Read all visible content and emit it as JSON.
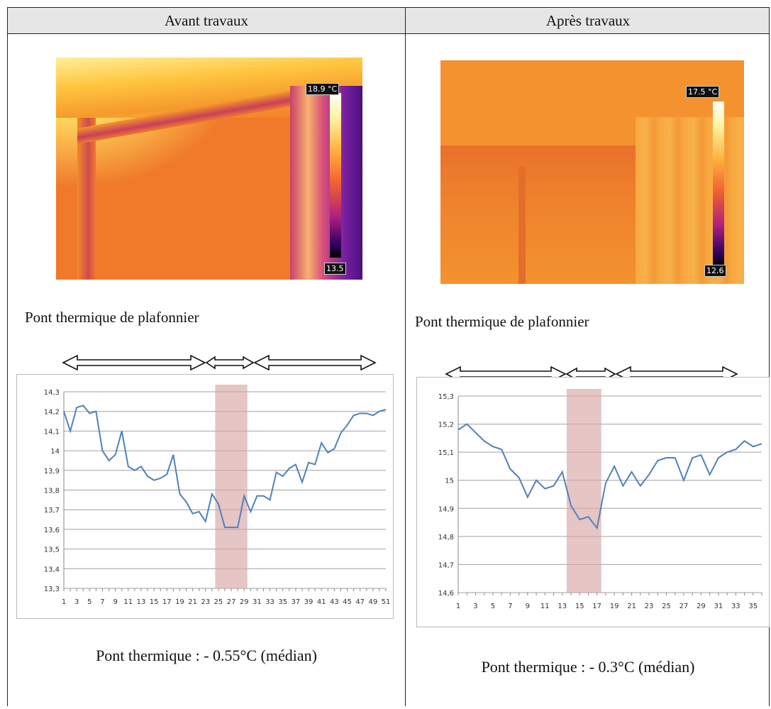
{
  "headers": {
    "left": "Avant travaux",
    "right": "Après travaux"
  },
  "left": {
    "image": {
      "max_label": "18.9 °C",
      "min_label": "13.5"
    },
    "caption": "Pont thermique de plafonnier",
    "note": "Pont thermique : - 0.55°C (médian)"
  },
  "right": {
    "image": {
      "max_label": "17.5 °C",
      "min_label": "12.6"
    },
    "caption": "Pont thermique de plafonnier",
    "note": "Pont thermique : - 0.3°C (médian)"
  },
  "chart_data": [
    {
      "type": "line",
      "grid": true,
      "line_color": "#4f81bd",
      "highlight_color": "#d9a6a6",
      "ylim": [
        13.3,
        14.3
      ],
      "ytick_labels": [
        "13,3",
        "13,4",
        "13,5",
        "13,6",
        "13,7",
        "13,8",
        "13,9",
        "14",
        "14,1",
        "14,2",
        "14,3"
      ],
      "xtick_labels": [
        "1",
        "3",
        "5",
        "7",
        "9",
        "11",
        "13",
        "15",
        "17",
        "19",
        "21",
        "23",
        "25",
        "27",
        "29",
        "31",
        "33",
        "35",
        "37",
        "39",
        "41",
        "43",
        "45",
        "47",
        "49",
        "51"
      ],
      "x": [
        1,
        2,
        3,
        4,
        5,
        6,
        7,
        8,
        9,
        10,
        11,
        12,
        13,
        14,
        15,
        16,
        17,
        18,
        19,
        20,
        21,
        22,
        23,
        24,
        25,
        26,
        27,
        28,
        29,
        30,
        31,
        32,
        33,
        34,
        35,
        36,
        37,
        38,
        39,
        40,
        41,
        42,
        43,
        44,
        45,
        46,
        47,
        48,
        49,
        50,
        51
      ],
      "values": [
        14.2,
        14.1,
        14.22,
        14.23,
        14.19,
        14.2,
        14.0,
        13.95,
        13.98,
        14.1,
        13.92,
        13.9,
        13.92,
        13.87,
        13.85,
        13.86,
        13.88,
        13.98,
        13.78,
        13.74,
        13.68,
        13.69,
        13.64,
        13.78,
        13.73,
        13.61,
        13.61,
        13.61,
        13.77,
        13.69,
        13.77,
        13.77,
        13.75,
        13.89,
        13.87,
        13.91,
        13.93,
        13.84,
        13.94,
        13.93,
        14.04,
        13.99,
        14.01,
        14.09,
        14.13,
        14.18,
        14.19,
        14.19,
        14.18,
        14.2,
        14.21
      ],
      "highlight_x": [
        25,
        29
      ]
    },
    {
      "type": "line",
      "grid": true,
      "line_color": "#4f81bd",
      "highlight_color": "#d9a6a6",
      "ylim": [
        14.6,
        15.3
      ],
      "ytick_labels": [
        "14,6",
        "14,7",
        "14,8",
        "14,9",
        "15",
        "15,1",
        "15,2",
        "15,3"
      ],
      "xtick_labels": [
        "1",
        "3",
        "5",
        "7",
        "9",
        "11",
        "13",
        "15",
        "17",
        "19",
        "21",
        "23",
        "25",
        "27",
        "29",
        "31",
        "33",
        "35"
      ],
      "x": [
        1,
        2,
        3,
        4,
        5,
        6,
        7,
        8,
        9,
        10,
        11,
        12,
        13,
        14,
        15,
        16,
        17,
        18,
        19,
        20,
        21,
        22,
        23,
        24,
        25,
        26,
        27,
        28,
        29,
        30,
        31,
        32,
        33,
        34,
        35,
        36
      ],
      "values": [
        15.18,
        15.2,
        15.17,
        15.14,
        15.12,
        15.11,
        15.04,
        15.01,
        14.94,
        15.0,
        14.97,
        14.98,
        15.03,
        14.91,
        14.86,
        14.87,
        14.83,
        14.99,
        15.05,
        14.98,
        15.03,
        14.98,
        15.02,
        15.07,
        15.08,
        15.08,
        15.0,
        15.08,
        15.09,
        15.02,
        15.08,
        15.1,
        15.11,
        15.14,
        15.12,
        15.13
      ],
      "highlight_x": [
        14,
        17
      ]
    }
  ]
}
